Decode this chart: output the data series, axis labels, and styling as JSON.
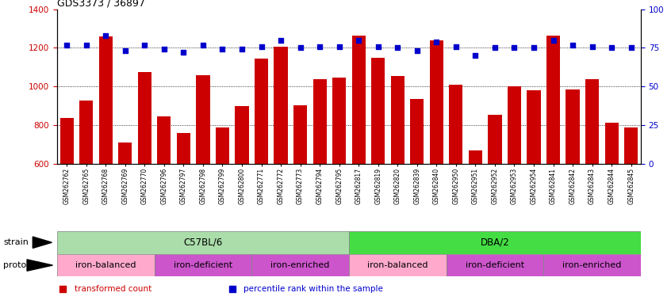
{
  "title": "GDS3373 / 36897",
  "samples": [
    "GSM262762",
    "GSM262765",
    "GSM262768",
    "GSM262769",
    "GSM262770",
    "GSM262796",
    "GSM262797",
    "GSM262798",
    "GSM262799",
    "GSM262800",
    "GSM262771",
    "GSM262772",
    "GSM262773",
    "GSM262794",
    "GSM262795",
    "GSM262817",
    "GSM262819",
    "GSM262820",
    "GSM262839",
    "GSM262840",
    "GSM262950",
    "GSM262951",
    "GSM262952",
    "GSM262953",
    "GSM262954",
    "GSM262841",
    "GSM262842",
    "GSM262843",
    "GSM262844",
    "GSM262845"
  ],
  "bar_values": [
    840,
    930,
    1260,
    710,
    1075,
    845,
    760,
    1060,
    790,
    900,
    1145,
    1205,
    905,
    1040,
    1045,
    1265,
    1150,
    1055,
    935,
    1240,
    1010,
    670,
    855,
    1000,
    980,
    1265,
    985,
    1040,
    815,
    790
  ],
  "blue_values": [
    77,
    77,
    83,
    73,
    77,
    74,
    72,
    77,
    74,
    74,
    76,
    80,
    75,
    76,
    76,
    80,
    76,
    75,
    73,
    79,
    76,
    70,
    75,
    75,
    75,
    80,
    77,
    76,
    75,
    75
  ],
  "bar_color": "#cc0000",
  "blue_color": "#0000cc",
  "ylim_left": [
    600,
    1400
  ],
  "ylim_right": [
    0,
    100
  ],
  "yticks_left": [
    600,
    800,
    1000,
    1200,
    1400
  ],
  "yticks_right": [
    0,
    25,
    50,
    75,
    100
  ],
  "grid_values": [
    800,
    1000,
    1200
  ],
  "strain_groups": [
    {
      "label": "C57BL/6",
      "start": 0,
      "end": 15,
      "color": "#aaddaa"
    },
    {
      "label": "DBA/2",
      "start": 15,
      "end": 30,
      "color": "#44dd44"
    }
  ],
  "protocol_groups": [
    {
      "label": "iron-balanced",
      "start": 0,
      "end": 5,
      "color": "#ffaacc"
    },
    {
      "label": "iron-deficient",
      "start": 5,
      "end": 10,
      "color": "#cc55cc"
    },
    {
      "label": "iron-enriched",
      "start": 10,
      "end": 15,
      "color": "#cc55cc"
    },
    {
      "label": "iron-balanced",
      "start": 15,
      "end": 20,
      "color": "#ffaacc"
    },
    {
      "label": "iron-deficient",
      "start": 20,
      "end": 25,
      "color": "#cc55cc"
    },
    {
      "label": "iron-enriched",
      "start": 25,
      "end": 30,
      "color": "#cc55cc"
    }
  ],
  "legend_items": [
    {
      "label": "transformed count",
      "color": "#cc0000"
    },
    {
      "label": "percentile rank within the sample",
      "color": "#0000cc"
    }
  ]
}
